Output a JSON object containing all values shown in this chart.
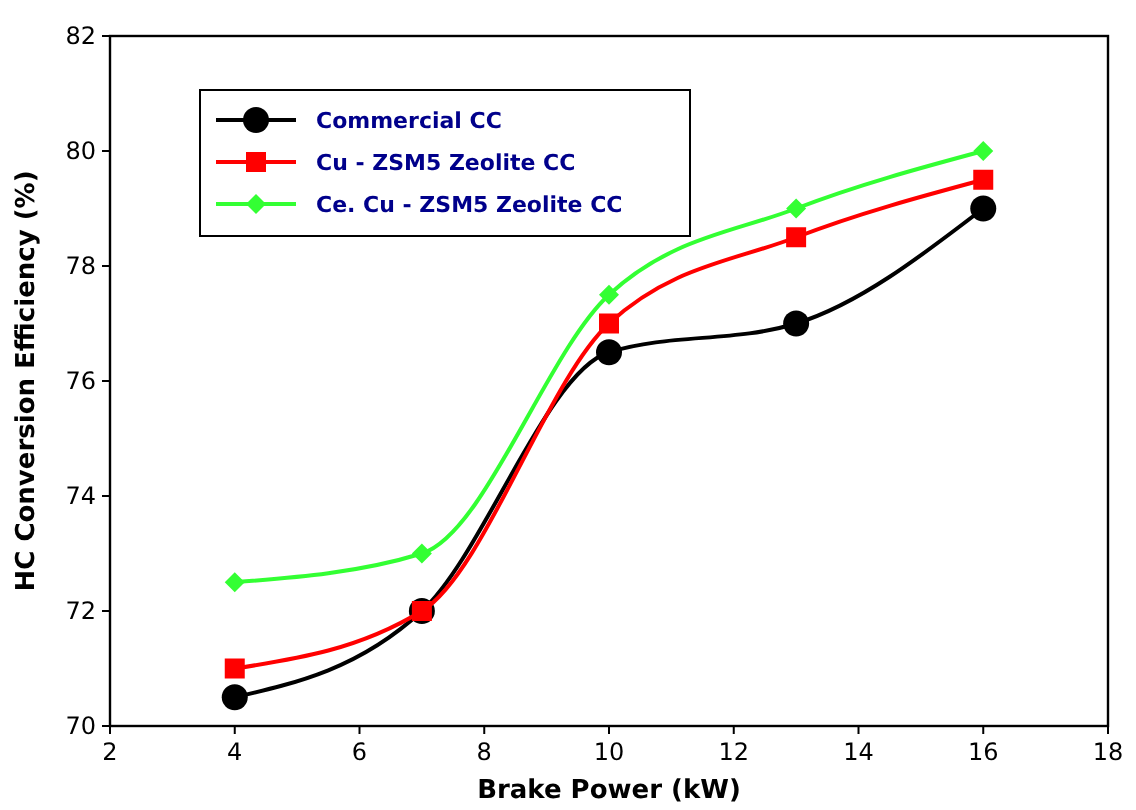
{
  "chart_data": {
    "type": "line",
    "xlabel": "Brake Power (kW)",
    "ylabel": "HC Conversion Efficiency (%)",
    "x": [
      4,
      7,
      10,
      13,
      16
    ],
    "series": [
      {
        "name": "Commercial CC",
        "color": "#000000",
        "marker": "circle",
        "values": [
          70.5,
          72,
          76.5,
          77,
          79
        ]
      },
      {
        "name": "Cu - ZSM5 Zeolite CC",
        "color": "#ff0000",
        "marker": "square",
        "values": [
          71,
          72,
          77,
          78.5,
          79.5
        ]
      },
      {
        "name": "Ce. Cu - ZSM5 Zeolite CC",
        "color": "#33ff33",
        "marker": "diamond",
        "values": [
          72.5,
          73,
          77.5,
          79,
          80
        ]
      }
    ],
    "xlim": [
      2,
      18
    ],
    "xticks": [
      2,
      4,
      6,
      8,
      10,
      12,
      14,
      16,
      18
    ],
    "ylim": [
      70,
      82
    ],
    "yticks": [
      70,
      72,
      74,
      76,
      78,
      80,
      82
    ],
    "grid": false,
    "legend": "top left",
    "line_style": "solid"
  }
}
